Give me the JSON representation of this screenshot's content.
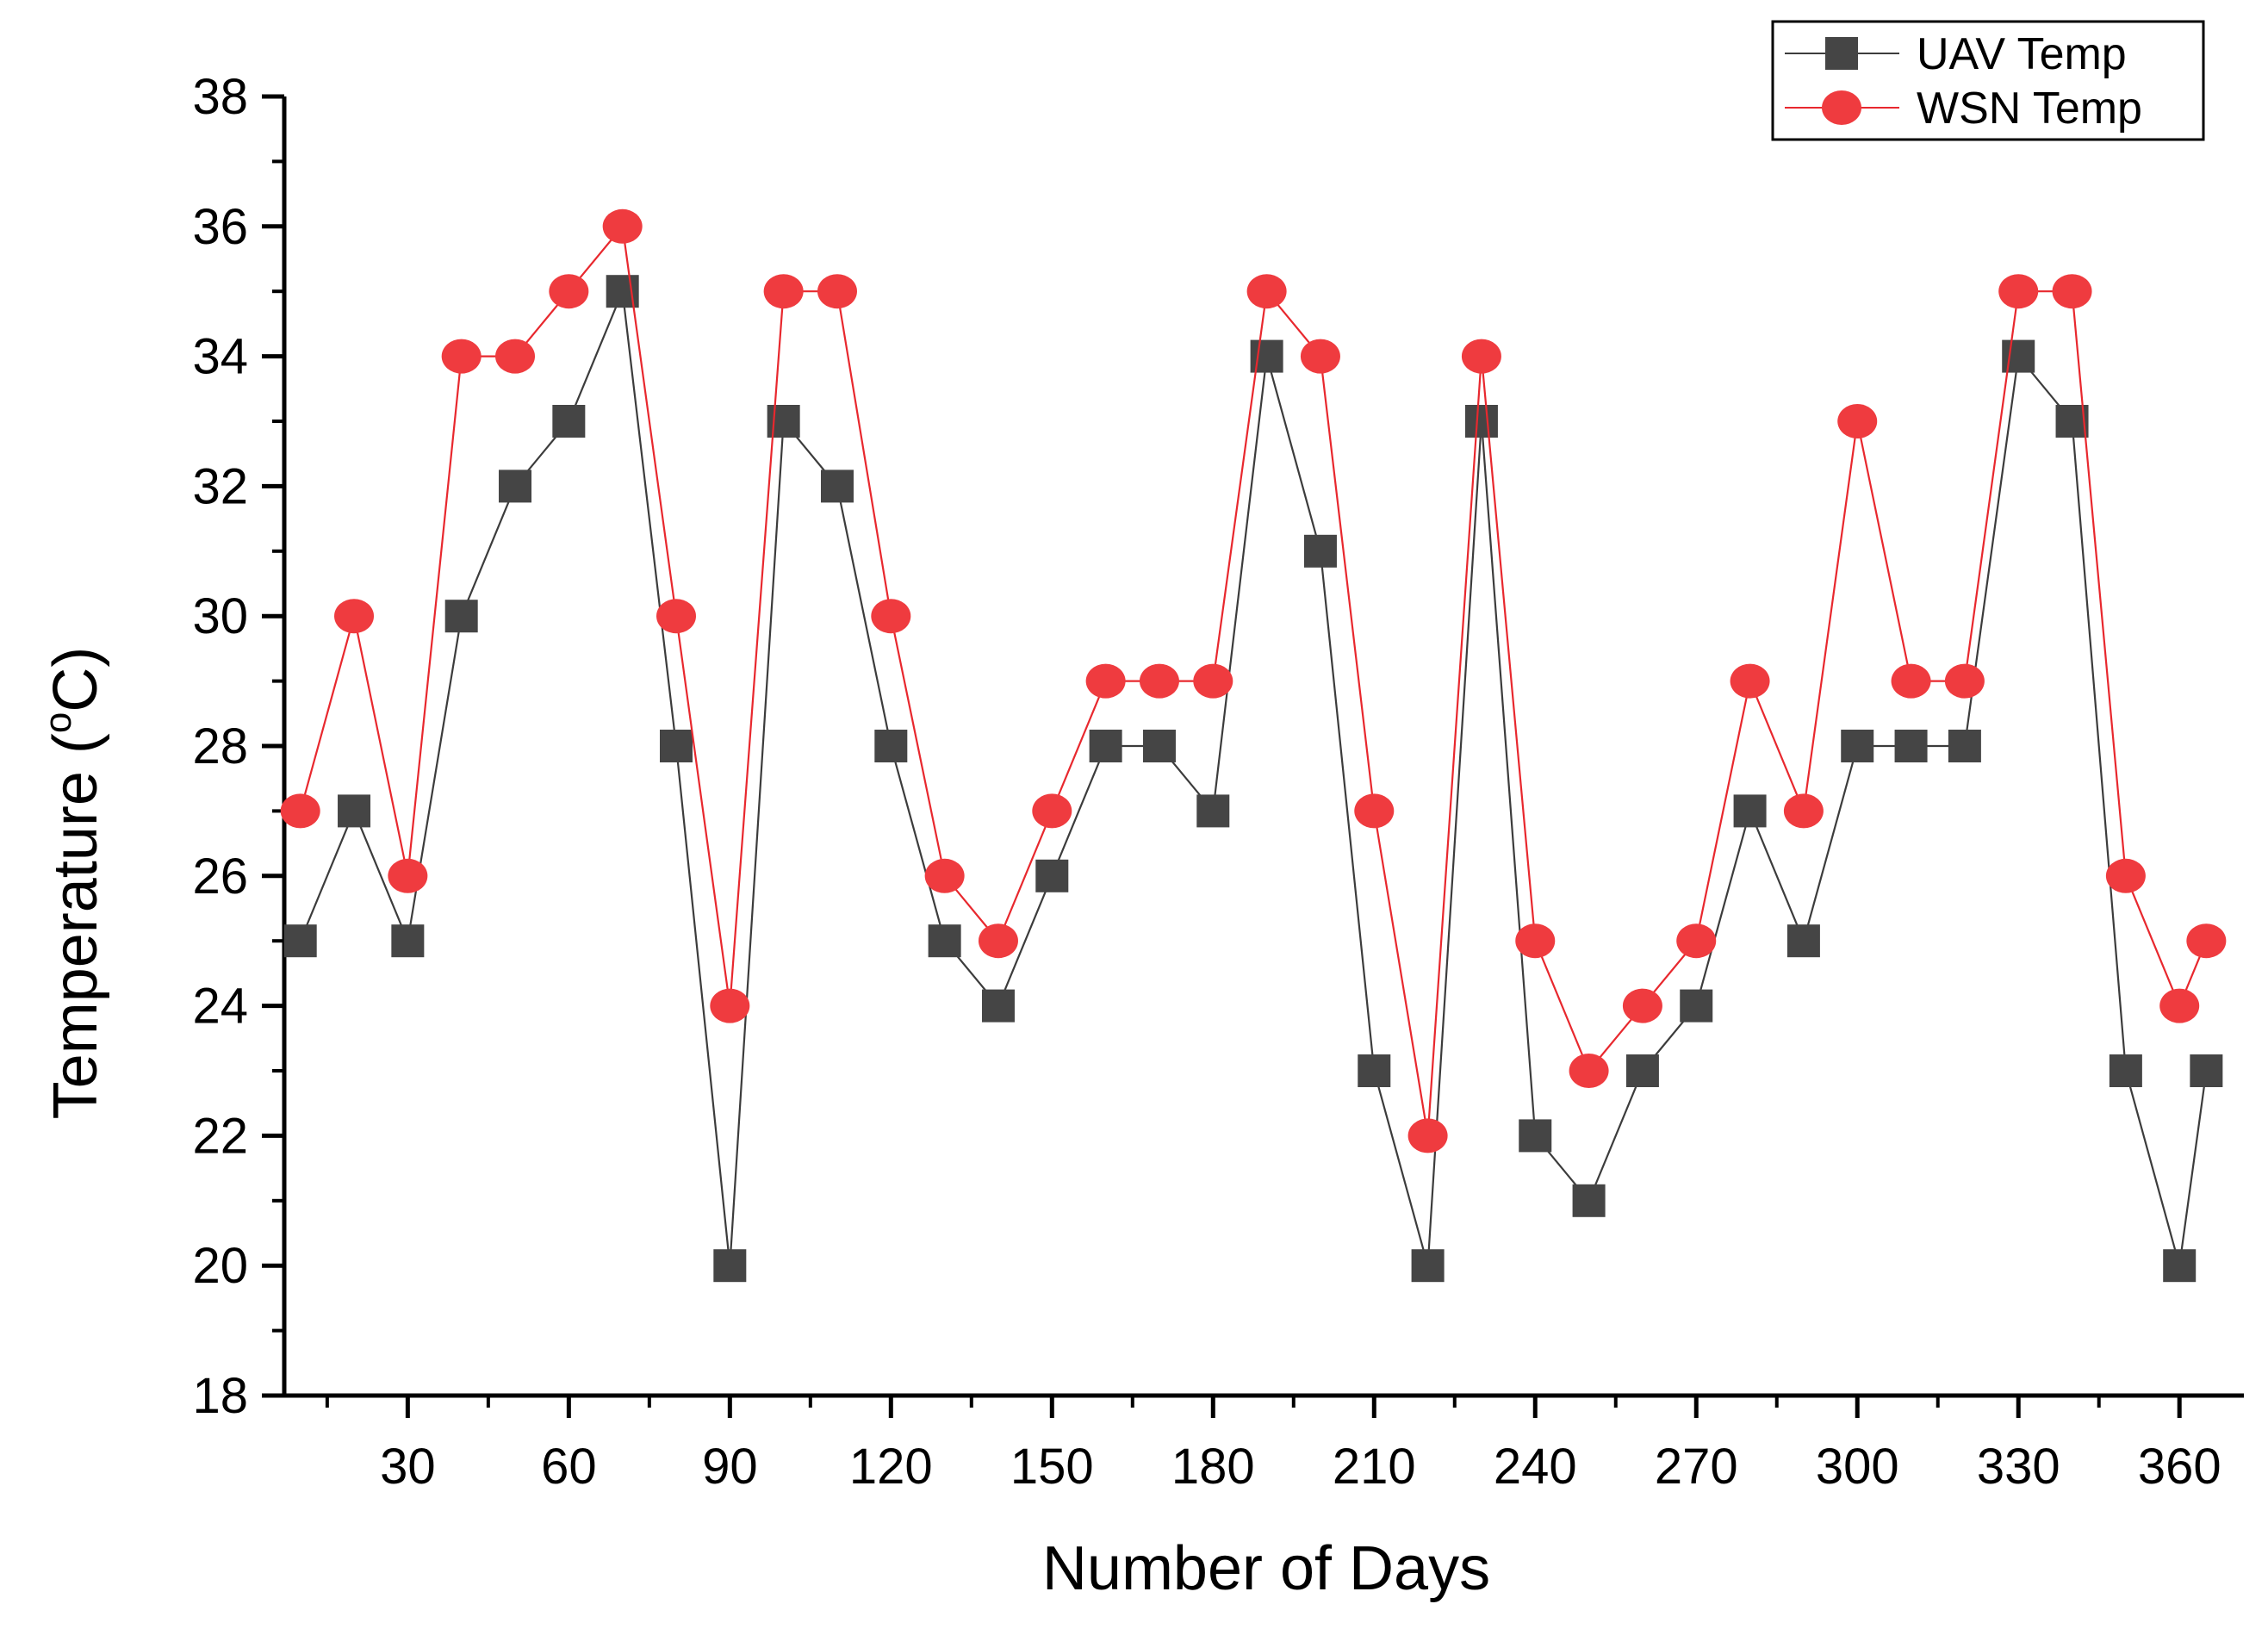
{
  "chart_data": {
    "type": "line",
    "xlabel": "Number of Days",
    "ylabel": "Temperature (",
    "ylabel_sup": "o",
    "ylabel_unit": "C)",
    "xlim": [
      7,
      372
    ],
    "ylim": [
      18,
      38
    ],
    "xticks": [
      30,
      60,
      90,
      120,
      150,
      180,
      210,
      240,
      270,
      300,
      330,
      360
    ],
    "yticks": [
      18,
      20,
      22,
      24,
      26,
      28,
      30,
      32,
      34,
      36,
      38
    ],
    "x": [
      10,
      20,
      30,
      40,
      50,
      60,
      70,
      80,
      90,
      100,
      110,
      120,
      130,
      140,
      150,
      160,
      170,
      180,
      190,
      200,
      210,
      220,
      230,
      240,
      250,
      260,
      270,
      280,
      290,
      300,
      310,
      320,
      330,
      340,
      350,
      360,
      365
    ],
    "series": [
      {
        "name": "UAV Temp",
        "marker": "square",
        "line_color": "#3c3c3c",
        "marker_color": "#454545",
        "values": [
          25,
          27,
          25,
          30,
          32,
          33,
          35,
          28,
          20,
          33,
          32,
          28,
          25,
          24,
          26,
          28,
          28,
          27,
          34,
          31,
          23,
          20,
          33,
          22,
          21,
          23,
          24,
          27,
          25,
          28,
          28,
          28,
          34,
          33,
          23,
          20,
          23
        ]
      },
      {
        "name": "WSN Temp",
        "marker": "circle",
        "line_color": "#e8282e",
        "marker_color": "#ef3b3f",
        "values": [
          27,
          30,
          26,
          34,
          34,
          35,
          36,
          30,
          24,
          35,
          35,
          30,
          26,
          25,
          27,
          29,
          29,
          29,
          35,
          34,
          27,
          22,
          34,
          25,
          23,
          24,
          25,
          29,
          27,
          33,
          29,
          29,
          35,
          35,
          26,
          24,
          25
        ]
      }
    ],
    "legend_position": "top-right"
  }
}
